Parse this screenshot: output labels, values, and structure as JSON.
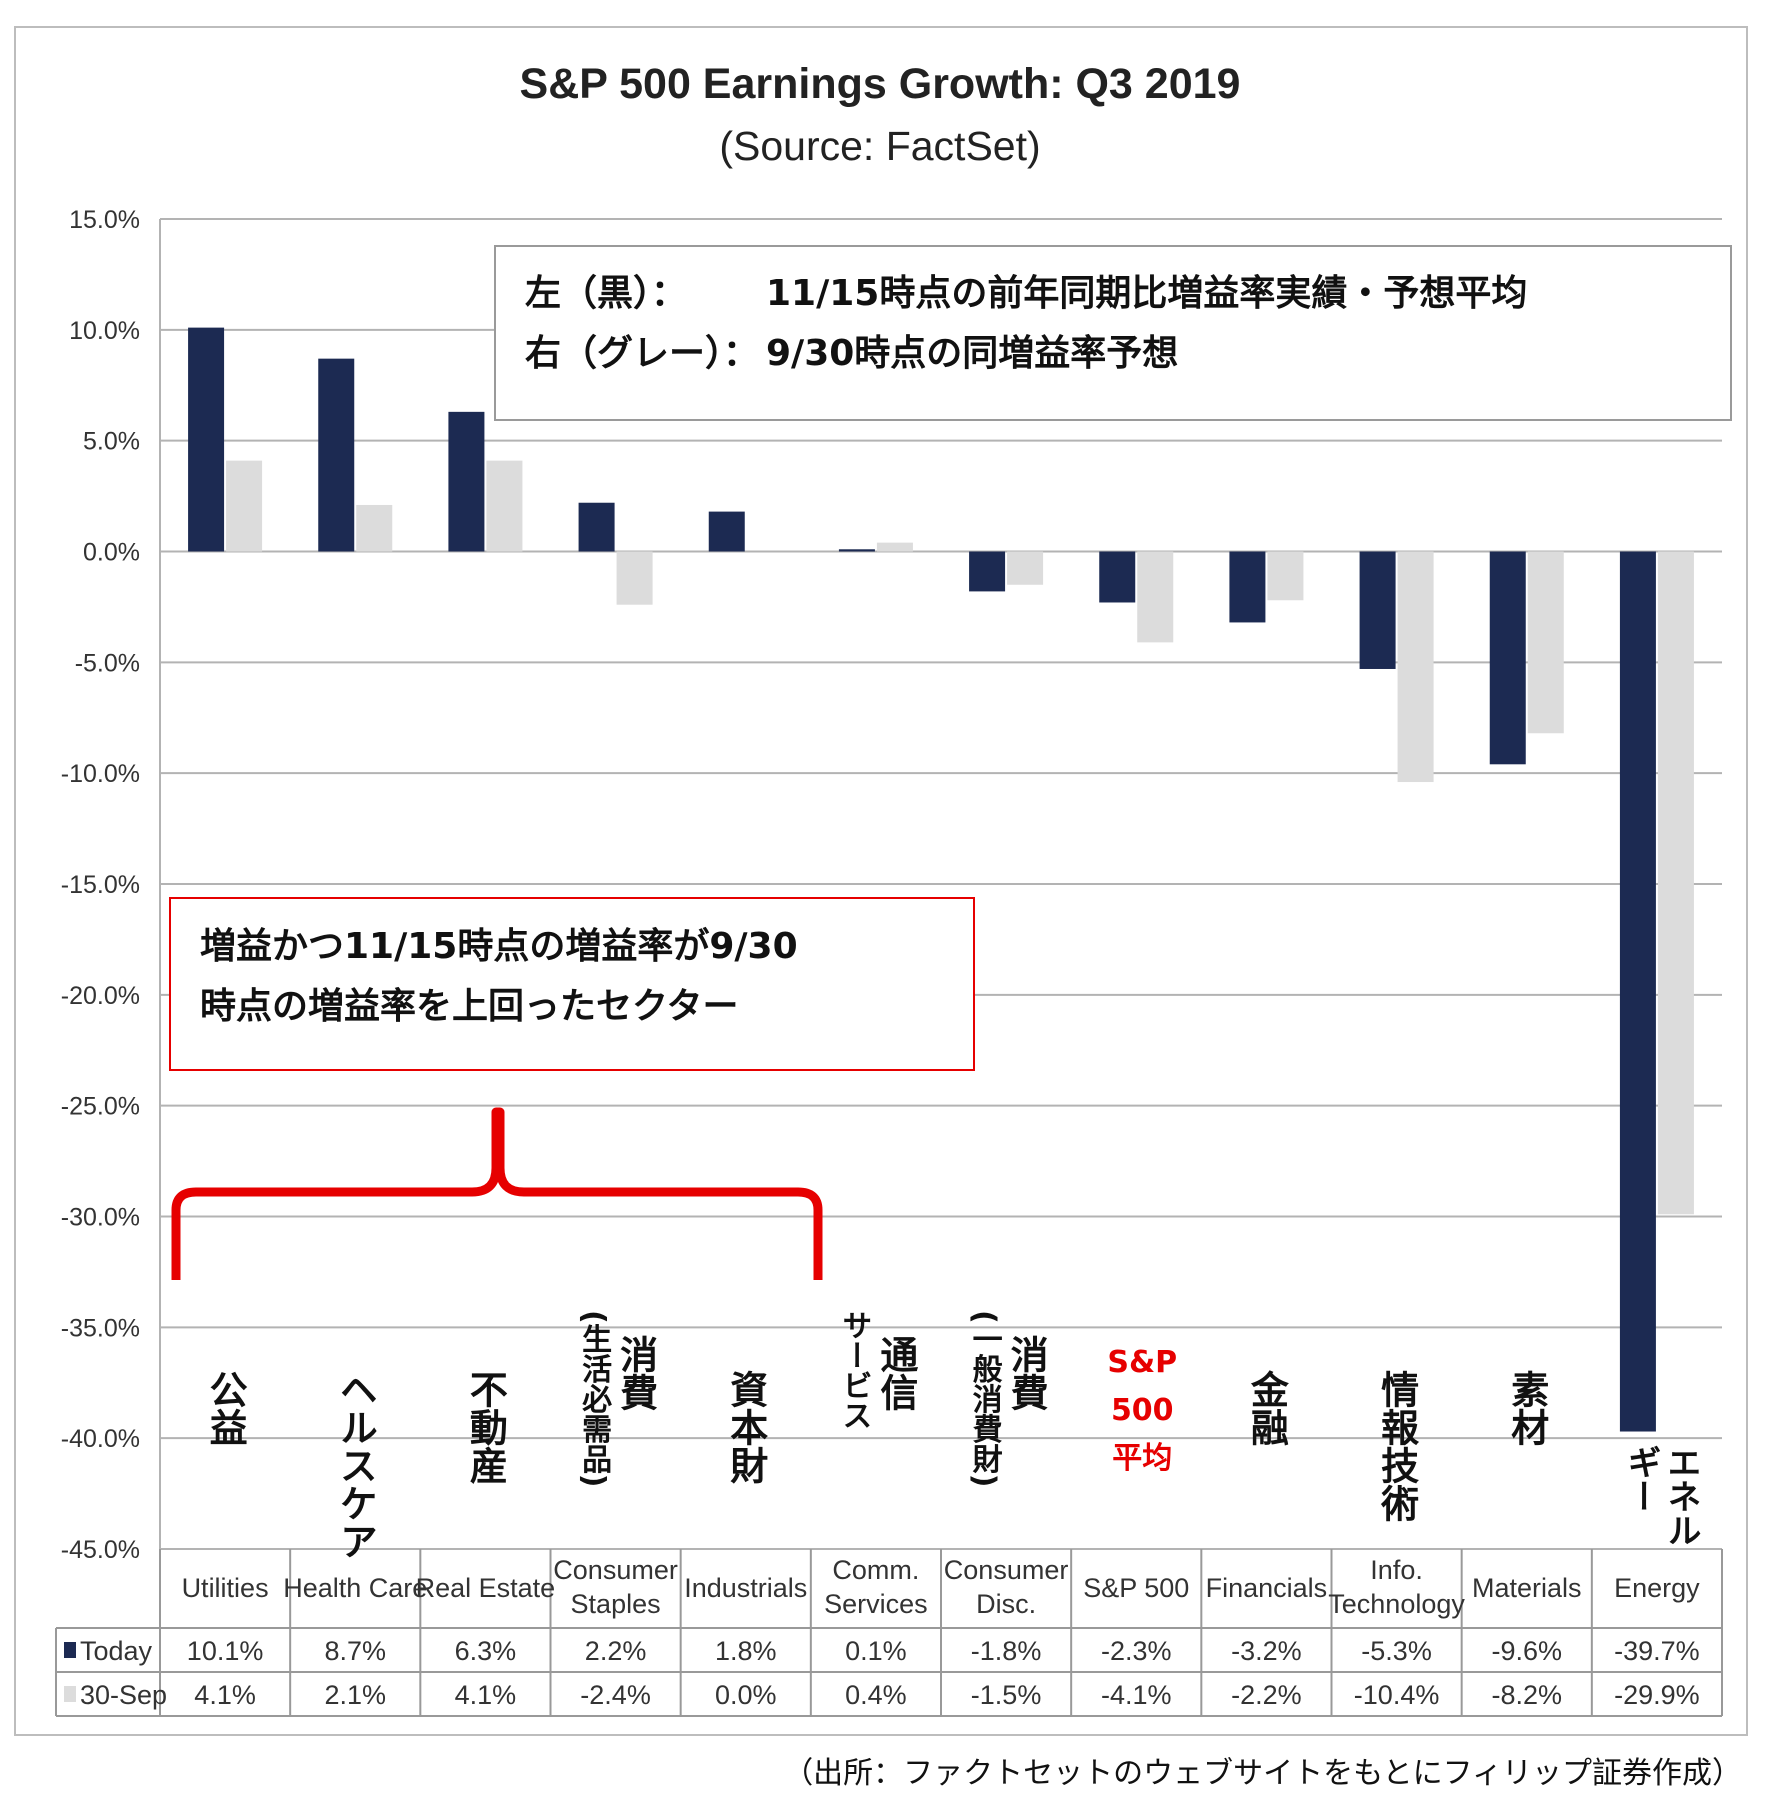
{
  "chart_data": {
    "type": "bar",
    "title": "S&P 500 Earnings Growth: Q3 2019",
    "subtitle": "(Source: FactSet)",
    "ylim": [
      -45,
      15
    ],
    "yticks": [
      "15.0%",
      "10.0%",
      "5.0%",
      "0.0%",
      "-5.0%",
      "-10.0%",
      "-15.0%",
      "-20.0%",
      "-25.0%",
      "-30.0%",
      "-35.0%",
      "-40.0%",
      "-45.0%"
    ],
    "grid": true,
    "categories": [
      "Utilities",
      "Health Care",
      "Real Estate",
      "Consumer Staples",
      "Industrials",
      "Comm. Services",
      "Consumer Disc.",
      "S&P 500",
      "Financials",
      "Info. Technology",
      "Materials",
      "Energy"
    ],
    "categories_jp": [
      "公益",
      "ヘルスケア",
      "不動産",
      "消費 (生活必需品)",
      "資本財",
      "通信 サービス",
      "消費 (一般消費財)",
      "S&P 500 平均",
      "金融",
      "情報技術",
      "素材",
      "エネル ギー"
    ],
    "series": [
      {
        "name": "Today",
        "color": "#1c2a52",
        "values": [
          10.1,
          8.7,
          6.3,
          2.2,
          1.8,
          0.1,
          -1.8,
          -2.3,
          -3.2,
          -5.3,
          -9.6,
          -39.7
        ],
        "labels": [
          "10.1%",
          "8.7%",
          "6.3%",
          "2.2%",
          "1.8%",
          "0.1%",
          "-1.8%",
          "-2.3%",
          "-3.2%",
          "-5.3%",
          "-9.6%",
          "-39.7%"
        ]
      },
      {
        "name": "30-Sep",
        "color": "#dcdcdc",
        "values": [
          4.1,
          2.1,
          4.1,
          -2.4,
          0.0,
          0.4,
          -1.5,
          -4.1,
          -2.2,
          -10.4,
          -8.2,
          -29.9
        ],
        "labels": [
          "4.1%",
          "2.1%",
          "4.1%",
          "-2.4%",
          "0.0%",
          "0.4%",
          "-1.5%",
          "-4.1%",
          "-2.2%",
          "-10.4%",
          "-8.2%",
          "-29.9%"
        ]
      }
    ],
    "annotations": {
      "legend_box": [
        "左（黒）：",
        "11/15時点の前年同期比増益率実績・予想平均",
        "右（グレー）：",
        "9/30時点の同増益率予想"
      ],
      "highlight_box": [
        "増益かつ11/15時点の増益率が9/30",
        "時点の増益率を上回ったセクター"
      ]
    }
  },
  "source_note": "（出所：ファクトセットのウェブサイトをもとにフィリップ証券作成）"
}
